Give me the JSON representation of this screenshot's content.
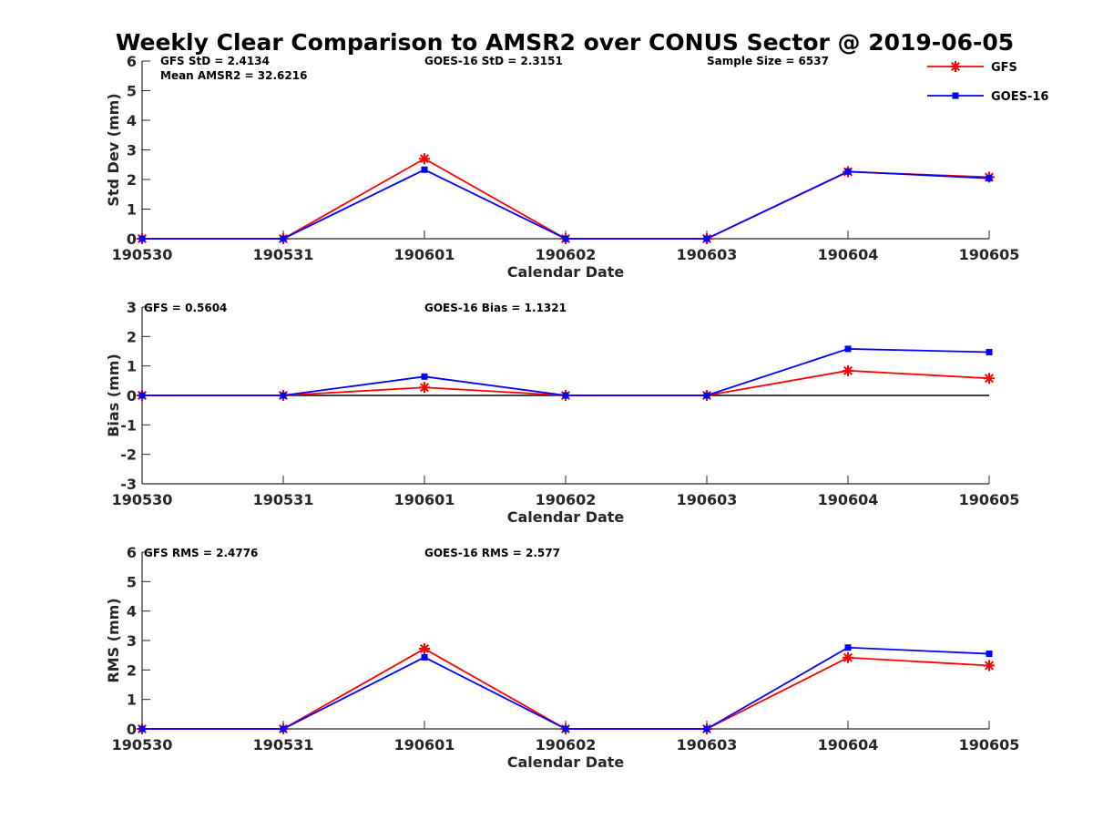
{
  "title": "Weekly Clear Comparison to AMSR2 over CONUS Sector @ 2019-06-05",
  "legend": [
    {
      "label": "GFS",
      "color": "#ff0000",
      "marker": "asterisk"
    },
    {
      "label": "GOES-16",
      "color": "#0000ff",
      "marker": "square"
    }
  ],
  "chart_data": [
    {
      "type": "line",
      "x": [
        "190530",
        "190531",
        "190601",
        "190602",
        "190603",
        "190604",
        "190605"
      ],
      "xlabel": "Calendar Date",
      "ylabel": "Std Dev (mm)",
      "ylim": [
        0,
        6
      ],
      "yticks": [
        0,
        1,
        2,
        3,
        4,
        5,
        6
      ],
      "series": [
        {
          "name": "GFS",
          "color": "#ff0000",
          "marker": "asterisk",
          "values": [
            0,
            0,
            2.7,
            0,
            0,
            2.26,
            2.08
          ]
        },
        {
          "name": "GOES-16",
          "color": "#0000ff",
          "marker": "square",
          "values": [
            0,
            0,
            2.33,
            0,
            0,
            2.27,
            2.04
          ]
        }
      ],
      "annotations": [
        "GFS StD = 2.4134",
        "Mean AMSR2 = 32.6216",
        "GOES-16 StD = 2.3151",
        "Sample Size = 6537"
      ]
    },
    {
      "type": "line",
      "x": [
        "190530",
        "190531",
        "190601",
        "190602",
        "190603",
        "190604",
        "190605"
      ],
      "xlabel": "Calendar Date",
      "ylabel": "Bias (mm)",
      "ylim": [
        -3,
        3
      ],
      "yticks": [
        -3,
        -2,
        -1,
        0,
        1,
        2,
        3
      ],
      "zero_line": true,
      "series": [
        {
          "name": "GFS",
          "color": "#ff0000",
          "marker": "asterisk",
          "values": [
            0,
            0,
            0.27,
            0,
            0,
            0.84,
            0.58
          ]
        },
        {
          "name": "GOES-16",
          "color": "#0000ff",
          "marker": "square",
          "values": [
            0,
            0,
            0.64,
            0,
            0,
            1.58,
            1.47
          ]
        }
      ],
      "annotations": [
        "GFS = 0.5604",
        "GOES-16 Bias  = 1.1321"
      ]
    },
    {
      "type": "line",
      "x": [
        "190530",
        "190531",
        "190601",
        "190602",
        "190603",
        "190604",
        "190605"
      ],
      "xlabel": "Calendar Date",
      "ylabel": "RMS (mm)",
      "ylim": [
        0,
        6
      ],
      "yticks": [
        0,
        1,
        2,
        3,
        4,
        5,
        6
      ],
      "series": [
        {
          "name": "GFS",
          "color": "#ff0000",
          "marker": "asterisk",
          "values": [
            0,
            0,
            2.72,
            0,
            0,
            2.42,
            2.15
          ]
        },
        {
          "name": "GOES-16",
          "color": "#0000ff",
          "marker": "square",
          "values": [
            0,
            0,
            2.43,
            0,
            0,
            2.76,
            2.55
          ]
        }
      ],
      "annotations": [
        "GFS RMS = 2.4776",
        "GOES-16 RMS = 2.577"
      ]
    }
  ]
}
